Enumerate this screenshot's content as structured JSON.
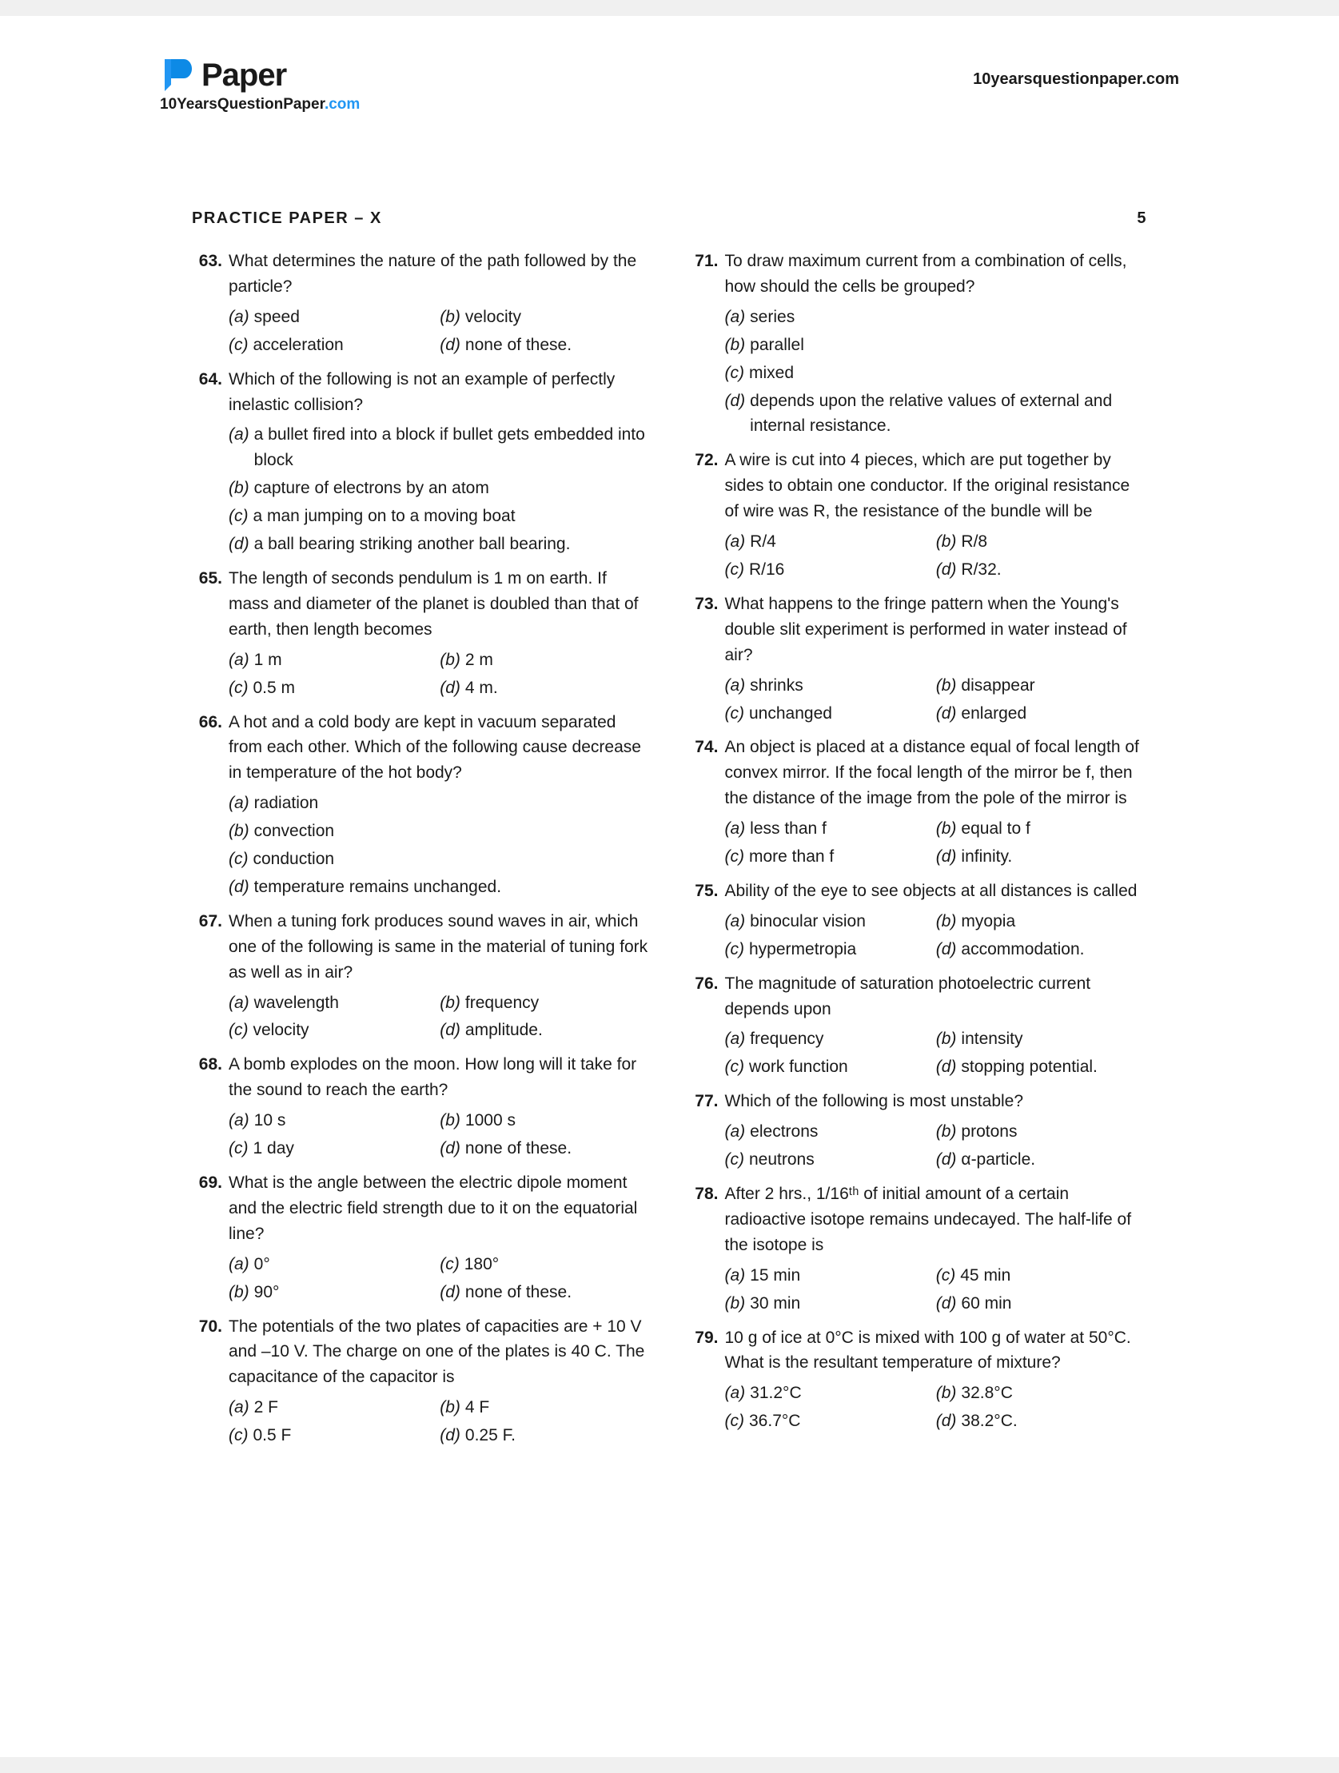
{
  "header": {
    "logo_text": "Paper",
    "logo_sub_prefix": "10YearsQuestionPaper",
    "logo_sub_suffix": ".com",
    "site_url": "10yearsquestionpaper.com"
  },
  "paper_title": "PRACTICE PAPER – X",
  "page_number": "5",
  "left_column": [
    {
      "num": "63.",
      "text": "What determines the nature of the path followed by the particle?",
      "opts": [
        {
          "label": "(a)",
          "text": "speed",
          "w": "half"
        },
        {
          "label": "(b)",
          "text": "velocity",
          "w": "half"
        },
        {
          "label": "(c)",
          "text": "acceleration",
          "w": "half"
        },
        {
          "label": "(d)",
          "text": "none of these.",
          "w": "half"
        }
      ]
    },
    {
      "num": "64.",
      "text": "Which of the following is not an example of perfectly inelastic collision?",
      "opts": [
        {
          "label": "(a)",
          "text": "a bullet fired into a block if bullet gets embedded into block",
          "w": "full"
        },
        {
          "label": "(b)",
          "text": "capture of electrons by an atom",
          "w": "full"
        },
        {
          "label": "(c)",
          "text": "a man jumping on to a moving boat",
          "w": "full"
        },
        {
          "label": "(d)",
          "text": "a ball bearing striking another ball bearing.",
          "w": "full"
        }
      ]
    },
    {
      "num": "65.",
      "text": "The length of seconds pendulum is 1 m on earth. If mass and diameter of the planet is doubled than that of earth, then length becomes",
      "opts": [
        {
          "label": "(a)",
          "text": "1 m",
          "w": "half"
        },
        {
          "label": "(b)",
          "text": "2 m",
          "w": "half"
        },
        {
          "label": "(c)",
          "text": "0.5 m",
          "w": "half"
        },
        {
          "label": "(d)",
          "text": "4 m.",
          "w": "half"
        }
      ]
    },
    {
      "num": "66.",
      "text": "A hot and a cold body are kept in vacuum separated from each other. Which of the following cause decrease in temperature of the hot body?",
      "opts": [
        {
          "label": "(a)",
          "text": "radiation",
          "w": "full"
        },
        {
          "label": "(b)",
          "text": "convection",
          "w": "full"
        },
        {
          "label": "(c)",
          "text": "conduction",
          "w": "full"
        },
        {
          "label": "(d)",
          "text": "temperature remains unchanged.",
          "w": "full"
        }
      ]
    },
    {
      "num": "67.",
      "text": "When a tuning fork produces sound waves in air, which one of the following is same in the material of tuning fork as well as in air?",
      "opts": [
        {
          "label": "(a)",
          "text": "wavelength",
          "w": "half"
        },
        {
          "label": "(b)",
          "text": "frequency",
          "w": "half"
        },
        {
          "label": "(c)",
          "text": "velocity",
          "w": "half"
        },
        {
          "label": "(d)",
          "text": "amplitude.",
          "w": "half"
        }
      ]
    },
    {
      "num": "68.",
      "text": "A bomb explodes on the moon. How long will it take for the sound to reach the earth?",
      "opts": [
        {
          "label": "(a)",
          "text": "10 s",
          "w": "half"
        },
        {
          "label": "(b)",
          "text": "1000 s",
          "w": "half"
        },
        {
          "label": "(c)",
          "text": "1 day",
          "w": "half"
        },
        {
          "label": "(d)",
          "text": "none of these.",
          "w": "half"
        }
      ]
    },
    {
      "num": "69.",
      "text": "What is the angle between the electric dipole moment and the electric field strength due to it on the equatorial line?",
      "opts": [
        {
          "label": "(a)",
          "text": "0°",
          "w": "half"
        },
        {
          "label": "(c)",
          "text": "180°",
          "w": "half"
        },
        {
          "label": "(b)",
          "text": "90°",
          "w": "half"
        },
        {
          "label": "(d)",
          "text": "none of these.",
          "w": "half"
        }
      ]
    },
    {
      "num": "70.",
      "text": "The potentials of the two plates of capacities are + 10 V and –10 V. The charge on one of the plates is 40 C. The capacitance of the capacitor is",
      "opts": [
        {
          "label": "(a)",
          "text": "2 F",
          "w": "half"
        },
        {
          "label": "(b)",
          "text": "4 F",
          "w": "half"
        },
        {
          "label": "(c)",
          "text": "0.5 F",
          "w": "half"
        },
        {
          "label": "(d)",
          "text": "0.25 F.",
          "w": "half"
        }
      ]
    }
  ],
  "right_column": [
    {
      "num": "71.",
      "text": "To draw maximum current from a combination of cells, how should the cells be grouped?",
      "opts": [
        {
          "label": "(a)",
          "text": "series",
          "w": "full"
        },
        {
          "label": "(b)",
          "text": "parallel",
          "w": "full"
        },
        {
          "label": "(c)",
          "text": "mixed",
          "w": "full"
        },
        {
          "label": "(d)",
          "text": "depends upon the relative values of external and internal resistance.",
          "w": "full"
        }
      ]
    },
    {
      "num": "72.",
      "text": "A wire is cut into 4 pieces, which are put together by sides to obtain one conductor. If the original resistance of wire was R, the resistance of the bundle will be",
      "opts": [
        {
          "label": "(a)",
          "text": "R/4",
          "w": "half"
        },
        {
          "label": "(b)",
          "text": "R/8",
          "w": "half"
        },
        {
          "label": "(c)",
          "text": "R/16",
          "w": "half"
        },
        {
          "label": "(d)",
          "text": "R/32.",
          "w": "half"
        }
      ]
    },
    {
      "num": "73.",
      "text": "What happens to the fringe pattern when the Young's double slit experiment is performed in water instead of air?",
      "opts": [
        {
          "label": "(a)",
          "text": "shrinks",
          "w": "half"
        },
        {
          "label": "(b)",
          "text": "disappear",
          "w": "half"
        },
        {
          "label": "(c)",
          "text": "unchanged",
          "w": "half"
        },
        {
          "label": "(d)",
          "text": "enlarged",
          "w": "half"
        }
      ]
    },
    {
      "num": "74.",
      "text": "An object is placed at a distance equal of focal length of convex mirror. If the focal length of the mirror be f, then the distance of the image from the pole of the mirror is",
      "opts": [
        {
          "label": "(a)",
          "text": "less than f",
          "w": "half"
        },
        {
          "label": "(b)",
          "text": "equal to f",
          "w": "half"
        },
        {
          "label": "(c)",
          "text": "more than f",
          "w": "half"
        },
        {
          "label": "(d)",
          "text": "infinity.",
          "w": "half"
        }
      ]
    },
    {
      "num": "75.",
      "text": "Ability of the eye to see objects at all distances is called",
      "opts": [
        {
          "label": "(a)",
          "text": "binocular vision",
          "w": "half"
        },
        {
          "label": "(b)",
          "text": "myopia",
          "w": "half"
        },
        {
          "label": "(c)",
          "text": "hypermetropia",
          "w": "half"
        },
        {
          "label": "(d)",
          "text": "accommodation.",
          "w": "half"
        }
      ]
    },
    {
      "num": "76.",
      "text": "The magnitude of saturation photoelectric current depends upon",
      "opts": [
        {
          "label": "(a)",
          "text": "frequency",
          "w": "half"
        },
        {
          "label": "(b)",
          "text": "intensity",
          "w": "half"
        },
        {
          "label": "(c)",
          "text": "work function",
          "w": "half"
        },
        {
          "label": "(d)",
          "text": "stopping potential.",
          "w": "half"
        }
      ]
    },
    {
      "num": "77.",
      "text": "Which of the following is most unstable?",
      "opts": [
        {
          "label": "(a)",
          "text": "electrons",
          "w": "half"
        },
        {
          "label": "(b)",
          "text": "protons",
          "w": "half"
        },
        {
          "label": "(c)",
          "text": "neutrons",
          "w": "half"
        },
        {
          "label": "(d)",
          "text": "α-particle.",
          "w": "half"
        }
      ]
    },
    {
      "num": "78.",
      "text": "After 2 hrs., 1/16ᵗʰ of initial amount of a certain radioactive isotope remains undecayed. The half-life of the isotope is",
      "opts": [
        {
          "label": "(a)",
          "text": "15 min",
          "w": "half"
        },
        {
          "label": "(c)",
          "text": "45 min",
          "w": "half"
        },
        {
          "label": "(b)",
          "text": "30 min",
          "w": "half"
        },
        {
          "label": "(d)",
          "text": "60 min",
          "w": "half"
        }
      ]
    },
    {
      "num": "79.",
      "text": "10 g of ice at 0°C is mixed with 100 g of water at 50°C. What is the resultant temperature of mixture?",
      "opts": [
        {
          "label": "(a)",
          "text": "31.2°C",
          "w": "half"
        },
        {
          "label": "(b)",
          "text": "32.8°C",
          "w": "half"
        },
        {
          "label": "(c)",
          "text": "36.7°C",
          "w": "half"
        },
        {
          "label": "(d)",
          "text": "38.2°C.",
          "w": "half"
        }
      ]
    }
  ]
}
